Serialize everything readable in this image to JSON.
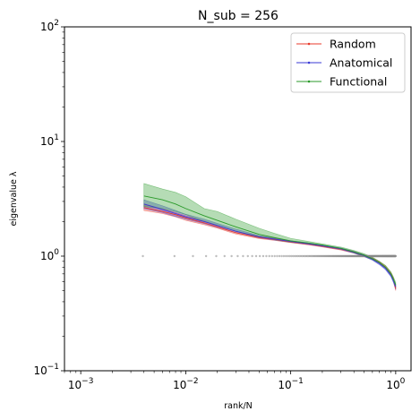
{
  "chart_data": {
    "type": "line",
    "title": "N_sub = 256",
    "xlabel": "rank/N",
    "ylabel": "eigenvalue λ",
    "xscale": "log",
    "yscale": "log",
    "xlim": [
      0.0007,
      1.4
    ],
    "ylim": [
      0.1,
      100
    ],
    "x_ticks": [
      {
        "value": 0.001,
        "base": "10",
        "exp": "−3"
      },
      {
        "value": 0.01,
        "base": "10",
        "exp": "−2"
      },
      {
        "value": 0.1,
        "base": "10",
        "exp": "−1"
      },
      {
        "value": 1,
        "base": "10",
        "exp": "0"
      }
    ],
    "y_ticks": [
      {
        "value": 0.1,
        "base": "10",
        "exp": "−1"
      },
      {
        "value": 1,
        "base": "10",
        "exp": "0"
      },
      {
        "value": 10,
        "base": "10",
        "exp": "1"
      },
      {
        "value": 100,
        "base": "10",
        "exp": "2"
      }
    ],
    "legend_position": "top-right",
    "grid": false,
    "series": [
      {
        "name": "Random",
        "color": "#e8392b",
        "x": [
          0.004,
          0.006,
          0.008,
          0.01,
          0.015,
          0.02,
          0.03,
          0.05,
          0.07,
          0.1,
          0.15,
          0.2,
          0.3,
          0.4,
          0.5,
          0.6,
          0.7,
          0.8,
          0.9,
          0.95,
          1.0
        ],
        "y": [
          2.65,
          2.45,
          2.3,
          2.15,
          1.95,
          1.8,
          1.6,
          1.45,
          1.4,
          1.33,
          1.27,
          1.22,
          1.15,
          1.08,
          1.01,
          0.95,
          0.88,
          0.8,
          0.7,
          0.63,
          0.52
        ],
        "band_low": [
          2.5,
          2.35,
          2.2,
          2.05,
          1.88,
          1.75,
          1.56,
          1.42,
          1.37,
          1.31,
          1.25,
          1.2,
          1.13,
          1.06,
          0.99,
          0.93,
          0.86,
          0.78,
          0.68,
          0.61,
          0.5
        ],
        "band_high": [
          2.85,
          2.58,
          2.4,
          2.25,
          2.02,
          1.86,
          1.65,
          1.49,
          1.43,
          1.35,
          1.29,
          1.24,
          1.17,
          1.1,
          1.03,
          0.97,
          0.9,
          0.82,
          0.72,
          0.65,
          0.55
        ]
      },
      {
        "name": "Anatomical",
        "color": "#3a3ad6",
        "x": [
          0.004,
          0.006,
          0.008,
          0.01,
          0.015,
          0.02,
          0.03,
          0.05,
          0.07,
          0.1,
          0.15,
          0.2,
          0.3,
          0.4,
          0.5,
          0.6,
          0.7,
          0.8,
          0.9,
          0.95,
          1.0
        ],
        "y": [
          2.85,
          2.55,
          2.35,
          2.2,
          2.0,
          1.85,
          1.65,
          1.47,
          1.41,
          1.34,
          1.28,
          1.23,
          1.16,
          1.08,
          1.01,
          0.94,
          0.86,
          0.78,
          0.68,
          0.61,
          0.54
        ],
        "band_low": [
          2.6,
          2.4,
          2.22,
          2.1,
          1.92,
          1.78,
          1.6,
          1.44,
          1.38,
          1.32,
          1.26,
          1.21,
          1.14,
          1.06,
          0.99,
          0.92,
          0.84,
          0.76,
          0.66,
          0.59,
          0.51
        ],
        "band_high": [
          3.1,
          2.75,
          2.5,
          2.32,
          2.1,
          1.93,
          1.72,
          1.51,
          1.44,
          1.36,
          1.3,
          1.25,
          1.18,
          1.1,
          1.03,
          0.96,
          0.88,
          0.8,
          0.7,
          0.63,
          0.57
        ]
      },
      {
        "name": "Functional",
        "color": "#2a9a2a",
        "x": [
          0.004,
          0.006,
          0.008,
          0.01,
          0.015,
          0.02,
          0.03,
          0.05,
          0.07,
          0.1,
          0.15,
          0.2,
          0.3,
          0.4,
          0.5,
          0.6,
          0.7,
          0.8,
          0.9,
          0.95,
          1.0
        ],
        "y": [
          3.35,
          3.1,
          2.85,
          2.6,
          2.25,
          2.05,
          1.8,
          1.55,
          1.45,
          1.36,
          1.3,
          1.25,
          1.17,
          1.09,
          1.02,
          0.95,
          0.88,
          0.8,
          0.7,
          0.63,
          0.56
        ],
        "band_low": [
          2.7,
          2.6,
          2.45,
          2.3,
          2.0,
          1.85,
          1.65,
          1.46,
          1.39,
          1.32,
          1.27,
          1.22,
          1.15,
          1.07,
          1.0,
          0.93,
          0.86,
          0.78,
          0.68,
          0.61,
          0.53
        ],
        "band_high": [
          4.3,
          3.85,
          3.6,
          3.3,
          2.6,
          2.45,
          2.1,
          1.75,
          1.58,
          1.43,
          1.34,
          1.28,
          1.2,
          1.12,
          1.05,
          0.98,
          0.9,
          0.83,
          0.73,
          0.66,
          0.59
        ]
      }
    ],
    "reference": {
      "description": "",
      "color": "#888888",
      "y": 1,
      "n": 256
    }
  }
}
